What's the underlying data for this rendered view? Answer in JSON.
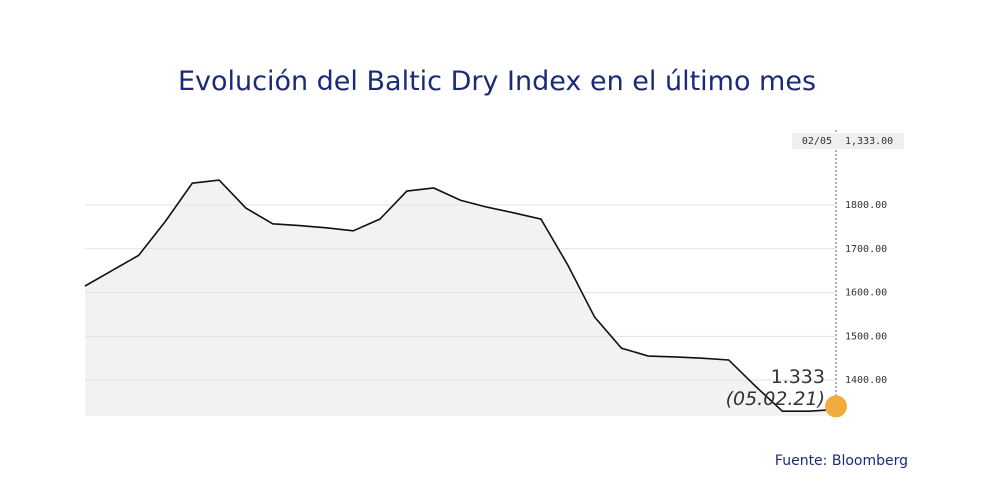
{
  "chart_data": {
    "type": "area",
    "title": "Evolución del Baltic Dry Index en el último mes",
    "source": "Fuente: Bloomberg",
    "categories": [
      null,
      null,
      null,
      null,
      null,
      null,
      null,
      null,
      null,
      null,
      null,
      null,
      null,
      null,
      null,
      null,
      null,
      null,
      null,
      null,
      null,
      null,
      null,
      null,
      null,
      null,
      null,
      null,
      "02/05"
    ],
    "values": [
      1615,
      1650,
      1685,
      1763,
      1850,
      1857,
      1793,
      1757,
      1753,
      1748,
      1741,
      1768,
      1832,
      1839,
      1811,
      1795,
      1782,
      1768,
      1663,
      1544,
      1473,
      1455,
      1453,
      1450,
      1446,
      1386,
      1329,
      1329,
      1333
    ],
    "value_labels": [
      null,
      null,
      null,
      null,
      null,
      null,
      null,
      null,
      null,
      null,
      null,
      null,
      null,
      null,
      null,
      null,
      null,
      null,
      null,
      null,
      null,
      null,
      null,
      null,
      null,
      null,
      null,
      null,
      "1.333"
    ],
    "annotation": "(05.02.21)",
    "crosshair_label": "1,333.00",
    "color": "#111111",
    "fill": "#f2f2f2",
    "marker_color": "#f0ac3c",
    "ylim": [
      1318,
      1960
    ],
    "yticks": [
      {
        "value": 1400,
        "label": "1400.00"
      },
      {
        "value": 1500,
        "label": "1500.00"
      },
      {
        "value": 1600,
        "label": "1600.00"
      },
      {
        "value": 1700,
        "label": "1700.00"
      },
      {
        "value": 1800,
        "label": "1800.00"
      }
    ],
    "grid": true
  }
}
